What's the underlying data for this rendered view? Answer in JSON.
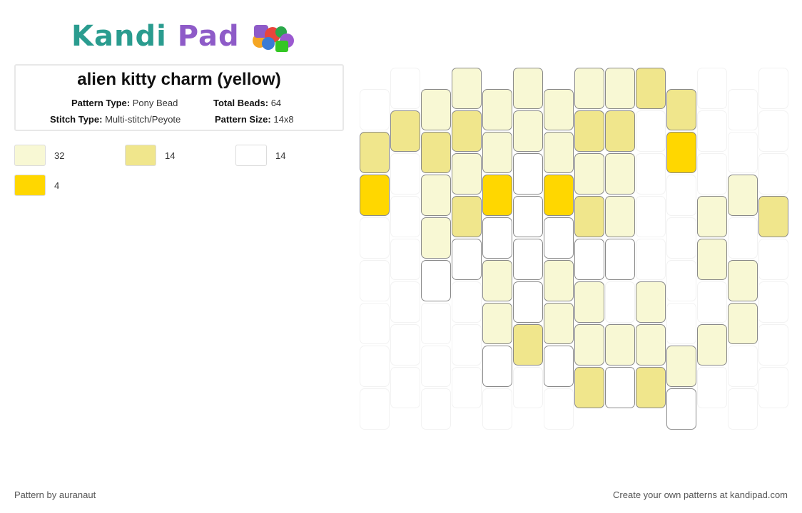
{
  "brand": {
    "name_part1": "Kandi",
    "name_part2": "Pad"
  },
  "pattern": {
    "title": "alien kitty charm (yellow)",
    "type_label": "Pattern Type:",
    "type_value": "Pony Bead",
    "beads_label": "Total Beads:",
    "beads_value": "64",
    "stitch_label": "Stitch Type:",
    "stitch_value": "Multi-stitch/Peyote",
    "size_label": "Pattern Size:",
    "size_value": "14x8"
  },
  "legend": [
    {
      "color": "#f8f8d4",
      "count": "32"
    },
    {
      "color": "#f0e68c",
      "count": "14"
    },
    {
      "color": "#ffffff",
      "count": "14"
    },
    {
      "color": "#ffd700",
      "count": "4"
    }
  ],
  "palette": {
    "P": "#f8f8d4",
    "K": "#f0e68c",
    "W": "#ffffff",
    "Y": "#ffd700"
  },
  "columns": [
    {
      "offset": 1,
      "beads": [
        "-",
        "K",
        "Y",
        "-",
        "-",
        "-",
        "-",
        "-"
      ]
    },
    {
      "offset": 0,
      "beads": [
        "-",
        "K",
        "-",
        "-",
        "-",
        "-",
        "-",
        "-"
      ]
    },
    {
      "offset": 1,
      "beads": [
        "P",
        "K",
        "P",
        "P",
        "W",
        "-",
        "-",
        "-"
      ]
    },
    {
      "offset": 0,
      "beads": [
        "P",
        "K",
        "P",
        "K",
        "W",
        "-",
        "-",
        "-"
      ]
    },
    {
      "offset": 1,
      "beads": [
        "P",
        "P",
        "Y",
        "W",
        "P",
        "P",
        "W",
        "-"
      ]
    },
    {
      "offset": 0,
      "beads": [
        "P",
        "P",
        "W",
        "W",
        "W",
        "W",
        "K",
        "-"
      ]
    },
    {
      "offset": 1,
      "beads": [
        "P",
        "P",
        "Y",
        "W",
        "P",
        "P",
        "W",
        "-"
      ]
    },
    {
      "offset": 0,
      "beads": [
        "P",
        "K",
        "P",
        "K",
        "W",
        "P",
        "P",
        "K"
      ]
    },
    {
      "offset": 0,
      "beads": [
        "P",
        "K",
        "P",
        "P",
        "W",
        "-",
        "P",
        "W"
      ]
    },
    {
      "offset": 0,
      "beads": [
        "K",
        "-",
        "-",
        "-",
        "-",
        "P",
        "P",
        "K"
      ]
    },
    {
      "offset": 1,
      "beads": [
        "K",
        "Y",
        "-",
        "-",
        "-",
        "-",
        "P",
        "W"
      ]
    },
    {
      "offset": 0,
      "beads": [
        "-",
        "-",
        "-",
        "P",
        "P",
        "-",
        "P",
        "-"
      ]
    },
    {
      "offset": 1,
      "beads": [
        "-",
        "-",
        "P",
        "-",
        "P",
        "P",
        "-",
        "-"
      ]
    },
    {
      "offset": 0,
      "beads": [
        "-",
        "-",
        "-",
        "K",
        "-",
        "-",
        "-",
        "-"
      ]
    }
  ],
  "footer": {
    "left": "Pattern by auranaut",
    "right": "Create your own patterns at kandipad.com"
  }
}
